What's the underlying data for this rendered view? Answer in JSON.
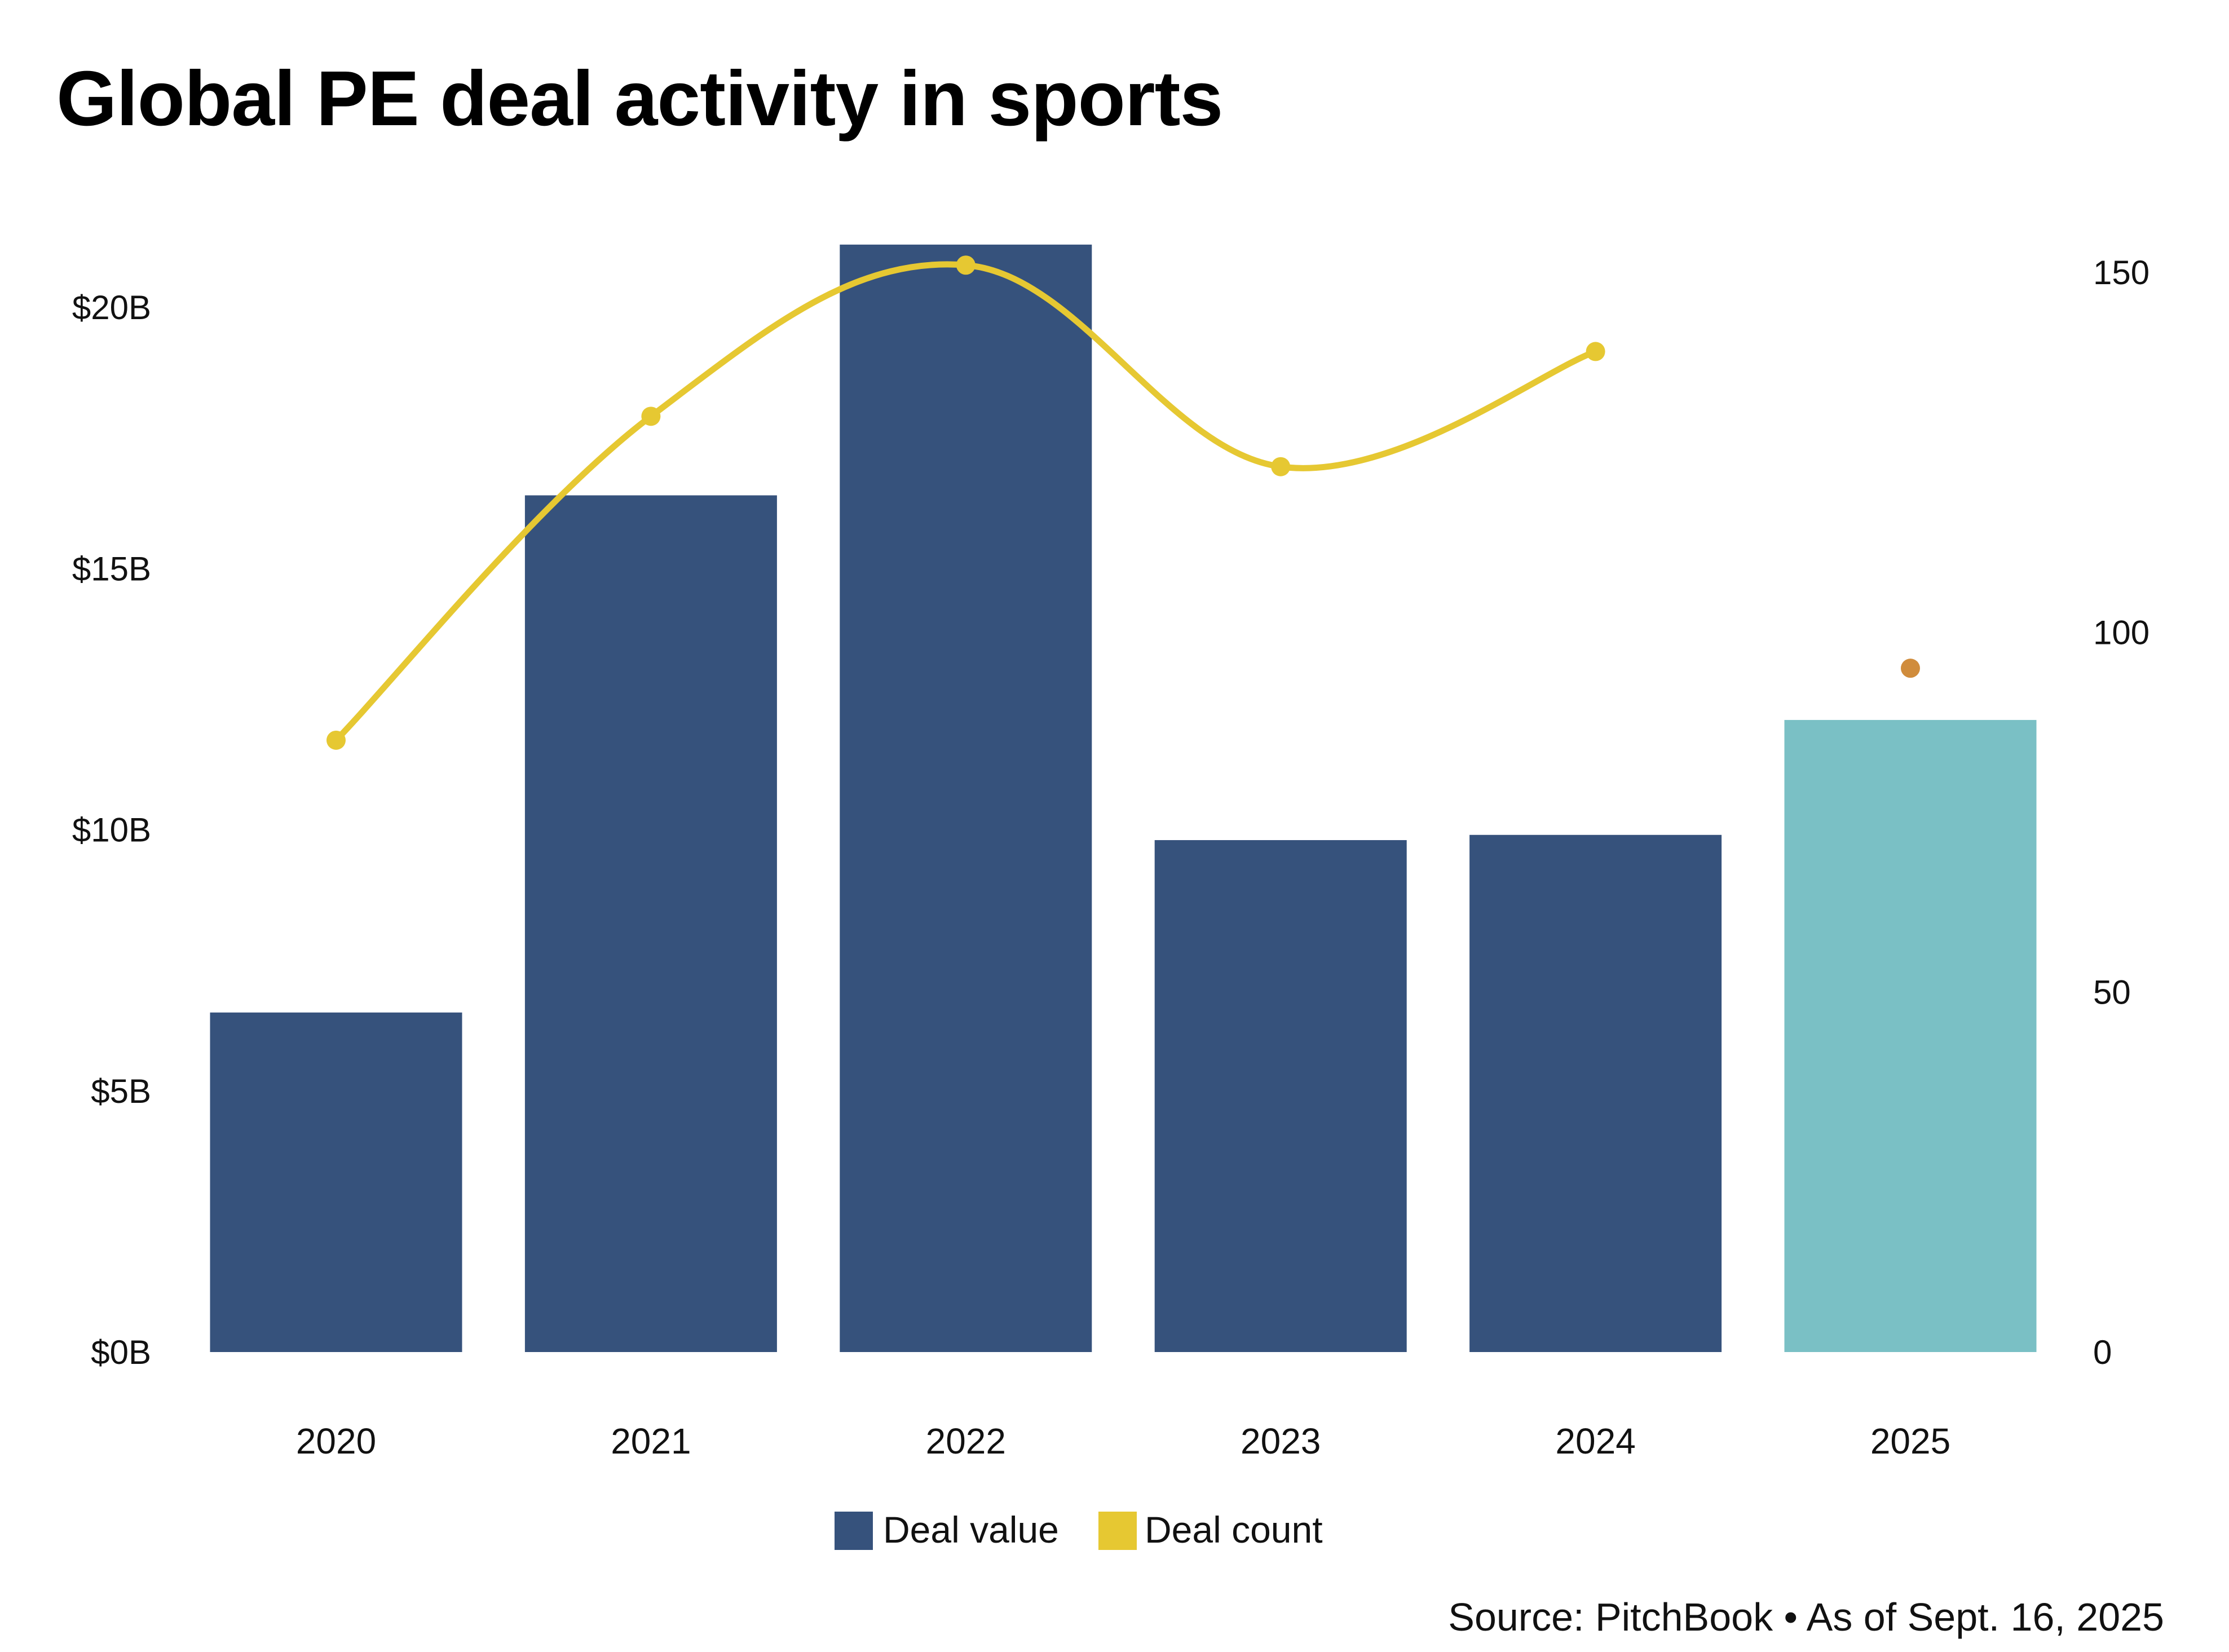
{
  "chart_data": {
    "type": "bar",
    "title": "Global PE deal activity in sports",
    "categories": [
      "2020",
      "2021",
      "2022",
      "2023",
      "2024",
      "2025"
    ],
    "series": [
      {
        "name": "Deal value",
        "kind": "bar",
        "axis": "left",
        "unit": "USD billions",
        "values": [
          6.5,
          16.4,
          21.2,
          9.8,
          9.9,
          12.1
        ],
        "colors": [
          "#36527c",
          "#36527c",
          "#36527c",
          "#36527c",
          "#36527c",
          "#7ac0c5"
        ]
      },
      {
        "name": "Deal count",
        "kind": "line",
        "axis": "right",
        "smooth": true,
        "values": [
          85,
          130,
          151,
          123,
          139,
          95
        ],
        "line_points": 5,
        "color": "#e6c832",
        "partial_year_color": "#d08c3c"
      }
    ],
    "left_axis": {
      "ticks": [
        0,
        5,
        10,
        15,
        20
      ],
      "tick_labels": [
        "$0B",
        "$5B",
        "$10B",
        "$15B",
        "$20B"
      ],
      "ylim": [
        0,
        20
      ]
    },
    "right_axis": {
      "ticks": [
        0,
        50,
        100,
        150
      ],
      "tick_labels": [
        "0",
        "50",
        "100",
        "150"
      ],
      "ylim": [
        0,
        150
      ]
    },
    "xlabel": "",
    "ylabel": "",
    "grid": false,
    "legend": {
      "position": "bottom-center",
      "entries": [
        {
          "label": "Deal value",
          "color": "#36527c"
        },
        {
          "label": "Deal count",
          "color": "#e6c832"
        }
      ]
    },
    "source": "Source: PitchBook • As of Sept. 16, 2025"
  }
}
